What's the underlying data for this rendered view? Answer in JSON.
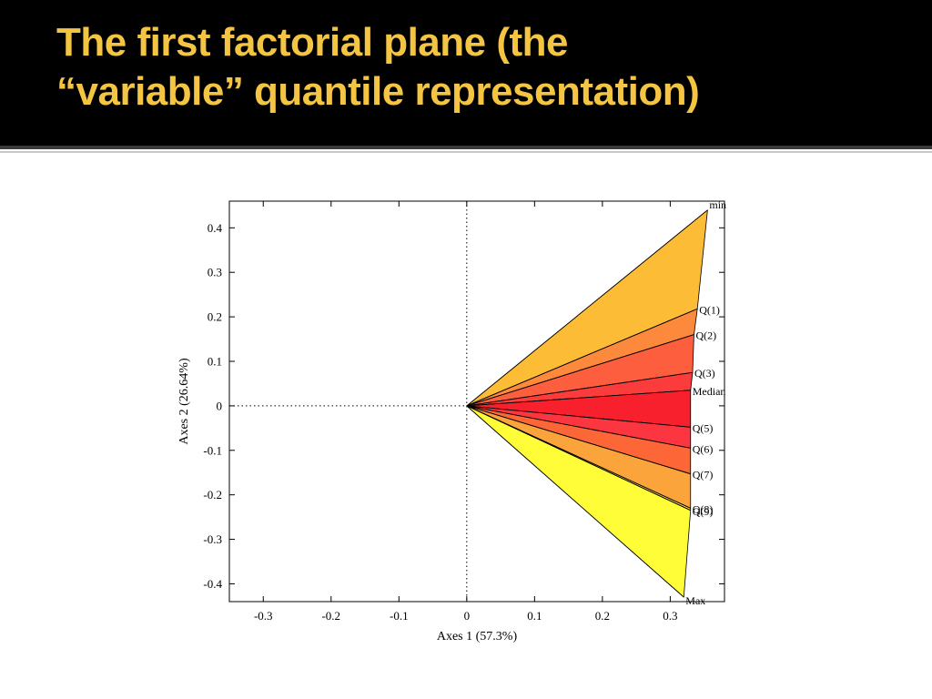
{
  "slide": {
    "title_line1": "The first factorial plane (the",
    "title_line2": "“variable” quantile representation)"
  },
  "chart_data": {
    "type": "scatter",
    "title": "",
    "xlabel": "Axes 1 (57.3%)",
    "ylabel": "Axes 2 (26.64%)",
    "xlim": [
      -0.35,
      0.38
    ],
    "ylim": [
      -0.44,
      0.46
    ],
    "xticks": [
      -0.3,
      -0.2,
      -0.1,
      0,
      0.1,
      0.2,
      0.3
    ],
    "yticks": [
      -0.4,
      -0.3,
      -0.2,
      -0.1,
      0,
      0.1,
      0.2,
      0.3,
      0.4
    ],
    "grid": false,
    "reference_lines": {
      "x": 0,
      "y": 0,
      "style": "dotted"
    },
    "origin": [
      0.0,
      0.0
    ],
    "points": [
      {
        "label": "min",
        "x": 0.355,
        "y": 0.44
      },
      {
        "label": "Q(1)",
        "x": 0.34,
        "y": 0.218
      },
      {
        "label": "Q(2)",
        "x": 0.335,
        "y": 0.16
      },
      {
        "label": "Q(3)",
        "x": 0.333,
        "y": 0.075
      },
      {
        "label": "Median",
        "x": 0.33,
        "y": 0.035
      },
      {
        "label": "Q(5)",
        "x": 0.33,
        "y": -0.048
      },
      {
        "label": "Q(6)",
        "x": 0.33,
        "y": -0.095
      },
      {
        "label": "Q(7)",
        "x": 0.33,
        "y": -0.153
      },
      {
        "label": "Q(8)",
        "x": 0.33,
        "y": -0.23
      },
      {
        "label": "Q(9)",
        "x": 0.33,
        "y": -0.235
      },
      {
        "label": "Max",
        "x": 0.32,
        "y": -0.43
      }
    ],
    "wedge_colors": [
      "#fcbc36",
      "#fd8a3c",
      "#fc5e3e",
      "#fc3c3c",
      "#f8202c",
      "#fc3640",
      "#fd6636",
      "#fca43c",
      "#fcd43a",
      "#fffd38"
    ]
  }
}
